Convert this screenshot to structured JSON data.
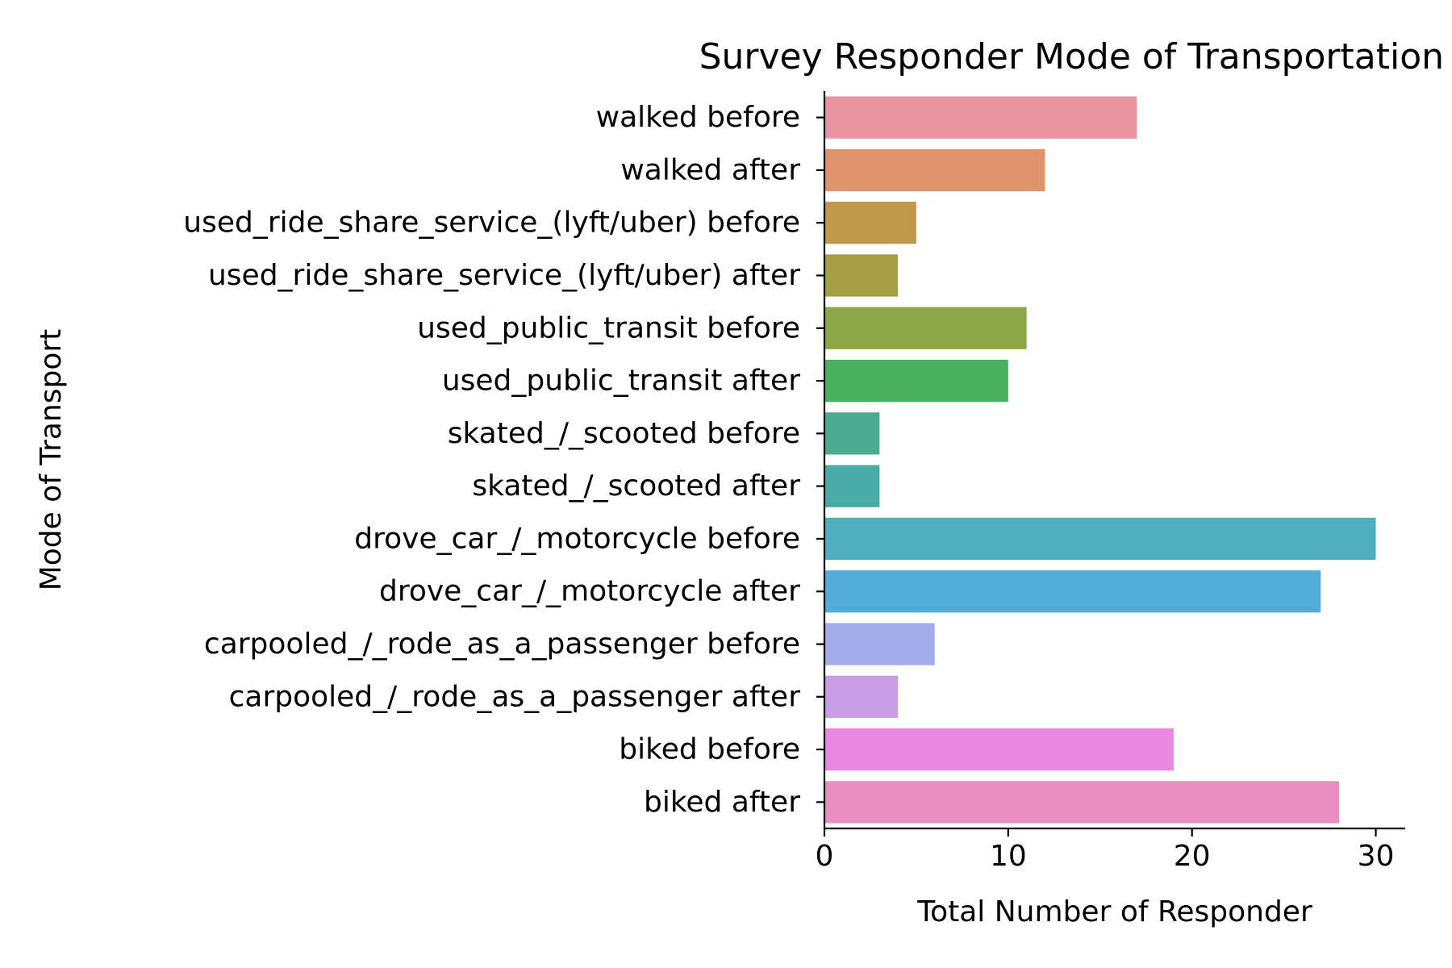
{
  "chart_data": {
    "type": "bar",
    "orientation": "horizontal",
    "title": "Survey Responder Mode of Transportation",
    "xlabel": "Total Number of Responder",
    "ylabel": "Mode of Transport",
    "xlim": [
      0,
      31.6
    ],
    "xticks": [
      0,
      10,
      20,
      30
    ],
    "grid": false,
    "legend": "none",
    "categories": [
      "walked before",
      "walked after",
      "used_ride_share_service_(lyft/uber) before",
      "used_ride_share_service_(lyft/uber) after",
      "used_public_transit before",
      "used_public_transit after",
      "skated_/_scooted before",
      "skated_/_scooted after",
      "drove_car_/_motorcycle before",
      "drove_car_/_motorcycle after",
      "carpooled_/_rode_as_a_passenger before",
      "carpooled_/_rode_as_a_passenger after",
      "biked before",
      "biked after"
    ],
    "values": [
      17,
      12,
      5,
      4,
      11,
      10,
      3,
      3,
      30,
      27,
      6,
      4,
      19,
      28
    ],
    "colors": [
      "#e994a0",
      "#e1936b",
      "#c09a4a",
      "#a69e45",
      "#8aa846",
      "#49b05e",
      "#4aab90",
      "#4aaaa6",
      "#4fadbd",
      "#52abd9",
      "#a2acea",
      "#c99be6",
      "#e889df",
      "#e88ec0"
    ]
  }
}
